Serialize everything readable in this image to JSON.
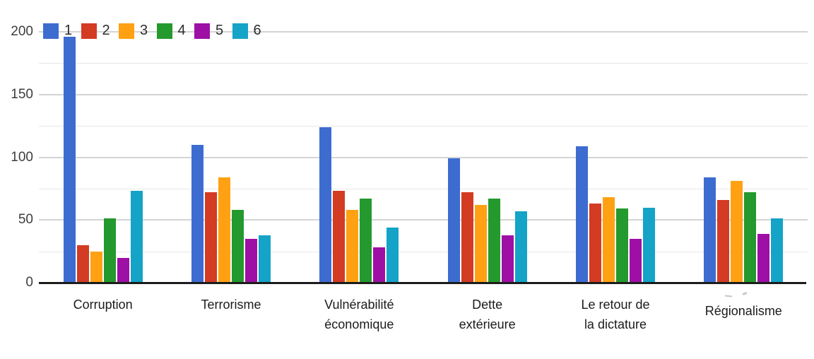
{
  "chart_data": {
    "type": "bar",
    "title": "",
    "xlabel": "",
    "ylabel": "",
    "ylim": [
      0,
      200
    ],
    "grid": {
      "orientation": "horizontal",
      "minor_step": 25,
      "major_step": 50
    },
    "legend_position": "top-left",
    "y_ticks": [
      {
        "label": "200",
        "value": 200
      },
      {
        "label": "150",
        "value": 150
      },
      {
        "label": "100",
        "value": 100
      },
      {
        "label": "50",
        "value": 50
      },
      {
        "label": "0",
        "value": 0
      }
    ],
    "categories": [
      "Corruption",
      "Terrorisme",
      "Vulnérabilité économique",
      "Dette extérieure",
      "Le retour de la dictature",
      "Régionalisme"
    ],
    "category_lines": [
      [
        "Corruption"
      ],
      [
        "Terrorisme"
      ],
      [
        "Vulnérabilité",
        "économique"
      ],
      [
        "Dette",
        "extérieure"
      ],
      [
        "Le retour de",
        "la dictature"
      ],
      [
        "Régionalisme"
      ]
    ],
    "series": [
      {
        "name": "1",
        "color": "#3d6cd0",
        "values": [
          196,
          110,
          124,
          99,
          109,
          84
        ]
      },
      {
        "name": "2",
        "color": "#d33b23",
        "values": [
          30,
          72,
          73,
          72,
          63,
          66
        ]
      },
      {
        "name": "3",
        "color": "#ffa113",
        "values": [
          25,
          84,
          58,
          62,
          68,
          81
        ]
      },
      {
        "name": "4",
        "color": "#24992d",
        "values": [
          51,
          58,
          67,
          67,
          59,
          72
        ]
      },
      {
        "name": "5",
        "color": "#9e0fa6",
        "values": [
          20,
          35,
          28,
          38,
          35,
          39
        ]
      },
      {
        "name": "6",
        "color": "#15a3c7",
        "values": [
          73,
          38,
          44,
          57,
          60,
          51
        ]
      }
    ]
  },
  "colors": {
    "background": "#ffffff",
    "axis_line": "#1c1c1c",
    "major_gridline": "#d4d4d4",
    "minor_gridline": "#e7e7e7",
    "tick_text": "#3d3d3d",
    "label_text": "#1b1b1b"
  }
}
